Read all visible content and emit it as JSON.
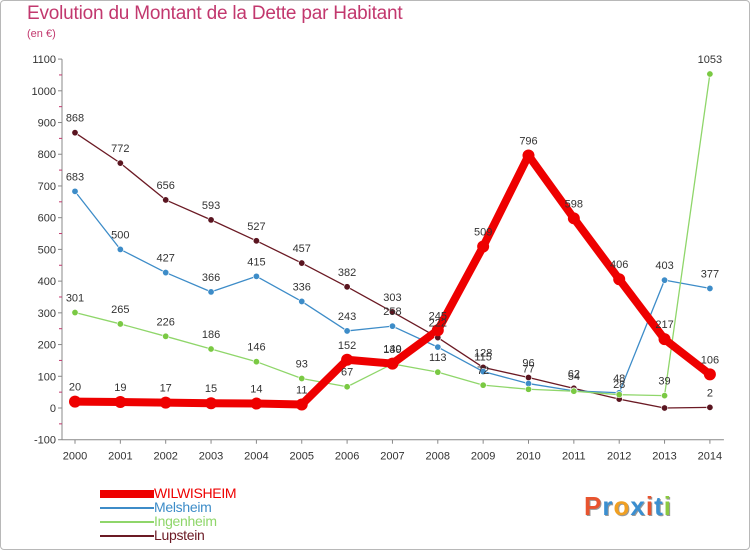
{
  "title": "Evolution du Montant de la Dette par Habitant",
  "unit": "(en €)",
  "logo": {
    "text": "Proxiti",
    "colors": [
      "#e8542f",
      "#3b8fd0",
      "#f0a023",
      "#3b8fd0",
      "#e8542f",
      "#3b8fd0",
      "#8bc93f"
    ]
  },
  "chart_data": {
    "type": "line",
    "x": [
      2000,
      2001,
      2002,
      2003,
      2004,
      2005,
      2006,
      2007,
      2008,
      2009,
      2010,
      2011,
      2012,
      2013,
      2014
    ],
    "ylim": [
      -100,
      1100
    ],
    "yticks": [
      -100,
      0,
      100,
      200,
      300,
      400,
      500,
      600,
      700,
      800,
      900,
      1000,
      1100
    ],
    "grid": false,
    "legend": "bottom-left",
    "series": [
      {
        "name": "Lupstein",
        "color": "#6b1a24",
        "marker": "#5a1520",
        "values": [
          868,
          772,
          656,
          593,
          527,
          457,
          382,
          303,
          222,
          128,
          96,
          62,
          28,
          0,
          2
        ],
        "labels": [
          "868",
          "772",
          "656",
          "593",
          "527",
          "457",
          "382",
          "303",
          "222",
          "128",
          "96",
          "62",
          "28",
          "",
          "2"
        ]
      },
      {
        "name": "Melsheim",
        "color": "#3d8cc8",
        "marker": "#3d8cc8",
        "values": [
          683,
          500,
          427,
          366,
          415,
          336,
          243,
          258,
          192,
          115,
          77,
          54,
          48,
          403,
          377
        ],
        "labels": [
          "683",
          "500",
          "427",
          "366",
          "415",
          "336",
          "243",
          "258",
          "",
          "115",
          "77",
          "54",
          "48",
          "403",
          "377"
        ]
      },
      {
        "name": "Ingenheim",
        "color": "#8fd66a",
        "marker": "#7ac943",
        "values": [
          301,
          265,
          226,
          186,
          146,
          93,
          67,
          139,
          113,
          72,
          59,
          53,
          42,
          39,
          1053
        ],
        "labels": [
          "301",
          "265",
          "226",
          "186",
          "146",
          "93",
          "67",
          "139",
          "113",
          "72",
          "",
          "",
          "",
          "39",
          "1053"
        ]
      },
      {
        "name": "WILWISHEIM",
        "color": "#ee0000",
        "marker": "#ee0000",
        "values": [
          20,
          19,
          17,
          15,
          14,
          11,
          152,
          140,
          245,
          509,
          796,
          598,
          406,
          217,
          106
        ],
        "labels": [
          "20",
          "19",
          "17",
          "15",
          "14",
          "11",
          "152",
          "140",
          "245",
          "509",
          "796",
          "598",
          "406",
          "217",
          "106"
        ]
      }
    ]
  }
}
